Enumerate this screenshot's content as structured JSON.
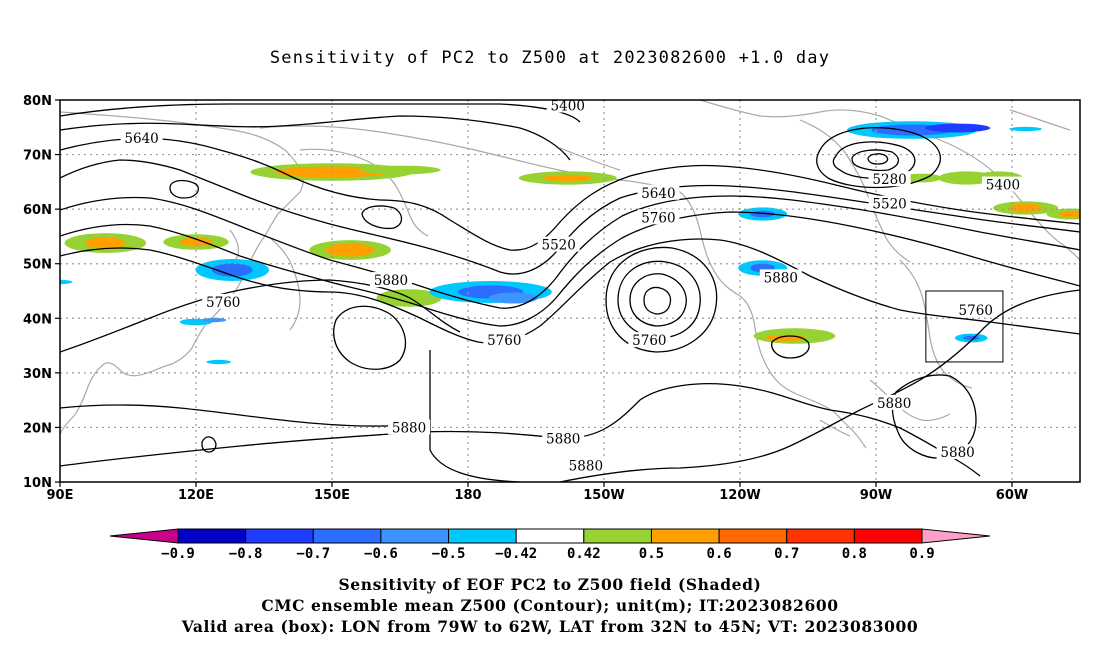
{
  "title": "Sensitivity of PC2 to Z500 at 2023082600 +1.0 day",
  "lat_labels": [
    "80N",
    "70N",
    "60N",
    "50N",
    "40N",
    "30N",
    "20N",
    "10N"
  ],
  "lon_labels": [
    "90E",
    "120E",
    "150E",
    "180",
    "150W",
    "120W",
    "90W",
    "60W"
  ],
  "contour_labels": [
    {
      "text": "5400",
      "lon": 202,
      "lat": 79
    },
    {
      "text": "5640",
      "lon": 108,
      "lat": 73
    },
    {
      "text": "5640",
      "lon": 222,
      "lat": 63
    },
    {
      "text": "5760",
      "lon": 222,
      "lat": 58.5
    },
    {
      "text": "5520",
      "lon": 200,
      "lat": 53.5
    },
    {
      "text": "5280",
      "lon": 273,
      "lat": 65.5
    },
    {
      "text": "5520",
      "lon": 273,
      "lat": 61
    },
    {
      "text": "5400",
      "lon": 298,
      "lat": 64.5
    },
    {
      "text": "5760",
      "lon": 126,
      "lat": 43
    },
    {
      "text": "5880",
      "lon": 163,
      "lat": 47
    },
    {
      "text": "5760",
      "lon": 188,
      "lat": 36
    },
    {
      "text": "5760",
      "lon": 220,
      "lat": 36
    },
    {
      "text": "5880",
      "lon": 249,
      "lat": 47.5
    },
    {
      "text": "5760",
      "lon": 292,
      "lat": 41.5
    },
    {
      "text": "5880",
      "lon": 167,
      "lat": 20
    },
    {
      "text": "5880",
      "lon": 201,
      "lat": 18
    },
    {
      "text": "5880",
      "lon": 206,
      "lat": 13
    },
    {
      "text": "5880",
      "lon": 274,
      "lat": 24.5
    },
    {
      "text": "5880",
      "lon": 288,
      "lat": 15.5
    }
  ],
  "valid_box": {
    "lon_min": 281,
    "lon_max": 298,
    "lat_min": 32,
    "lat_max": 45
  },
  "colorbar": {
    "labels": [
      "-0.9",
      "-0.8",
      "-0.7",
      "-0.6",
      "-0.5",
      "-0.42",
      "0.42",
      "0.5",
      "0.6",
      "0.7",
      "0.8",
      "0.9"
    ],
    "colors": [
      "#0000c8",
      "#1e3cff",
      "#2a6dff",
      "#3c95ff",
      "#00c8ff",
      "#ffffff",
      "#96d232",
      "#ffa000",
      "#ff6a00",
      "#ff3200",
      "#ff0000"
    ],
    "low_color": "#c8008c",
    "high_color": "#ffa0c8"
  },
  "caption": [
    "Sensitivity of EOF PC2 to Z500 field (Shaded)",
    "CMC ensemble mean Z500 (Contour); unit(m); IT:2023082600",
    "Valid area (box): LON from 79W to 62W, LAT from 32N to 45N; VT: 2023083000"
  ]
}
